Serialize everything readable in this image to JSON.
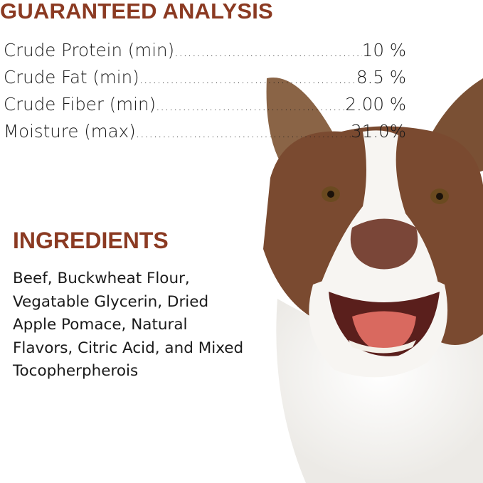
{
  "analysis": {
    "title": "GUARANTEED ANALYSIS",
    "rows": [
      {
        "label": "Crude Protein (min)",
        "value": "10 %"
      },
      {
        "label": "Crude Fat (min)",
        "value": "8.5 %"
      },
      {
        "label": "Crude Fiber (min)",
        "value": "2.00 %"
      },
      {
        "label": "Moisture (max)",
        "value": "31.0%"
      }
    ]
  },
  "ingredients": {
    "title": "INGREDIENTS",
    "lines": [
      "Beef, Buckwheat Flour,",
      "Vegatable Glycerin, Dried",
      "Apple Pomace, Natural",
      "Flavors, Citric Acid, and Mixed",
      "Tocopherpherois"
    ]
  },
  "colors": {
    "heading": "#8b3a22",
    "text": "#1a1a1a",
    "fur_brown": "#7a4a30"
  }
}
